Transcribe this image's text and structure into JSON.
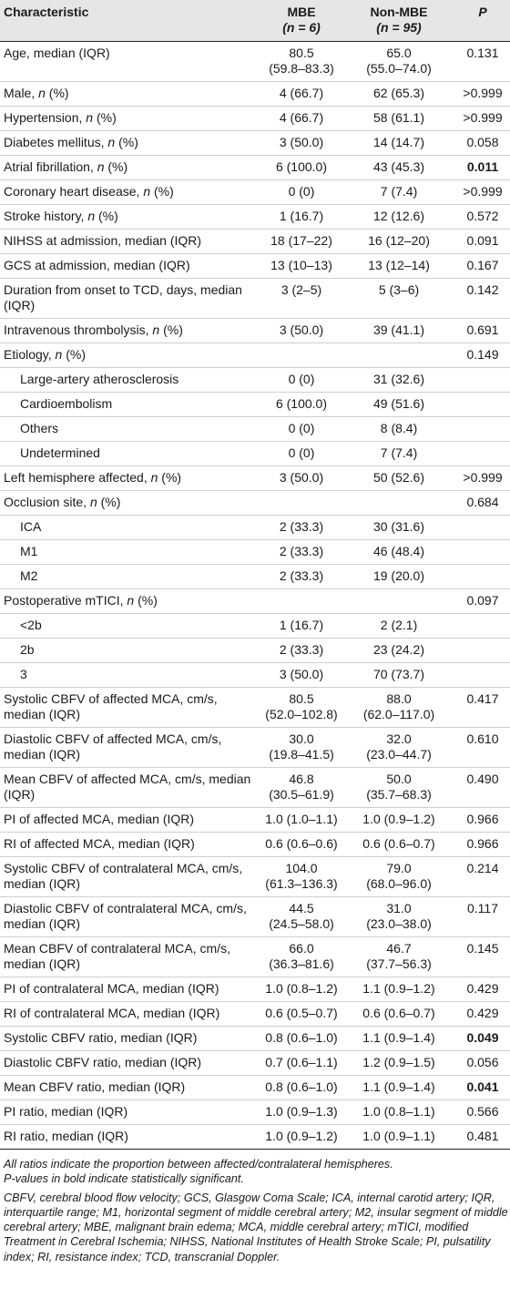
{
  "header": {
    "col1": "Characteristic",
    "col2_line1": "MBE",
    "col2_line2": "(n = 6)",
    "col3_line1": "Non-MBE",
    "col3_line2": "(n = 95)",
    "col4": "P"
  },
  "rows": [
    {
      "label": "Age, median (IQR)",
      "mbe": [
        "80.5",
        "(59.8–83.3)"
      ],
      "non": [
        "65.0",
        "(55.0–74.0)"
      ],
      "p": "0.131"
    },
    {
      "label": "Male, n (%)",
      "mbe": [
        "4 (66.7)"
      ],
      "non": [
        "62 (65.3)"
      ],
      "p": ">0.999"
    },
    {
      "label": "Hypertension, n (%)",
      "mbe": [
        "4 (66.7)"
      ],
      "non": [
        "58 (61.1)"
      ],
      "p": ">0.999"
    },
    {
      "label": "Diabetes mellitus, n (%)",
      "mbe": [
        "3 (50.0)"
      ],
      "non": [
        "14 (14.7)"
      ],
      "p": "0.058"
    },
    {
      "label": "Atrial fibrillation, n (%)",
      "mbe": [
        "6 (100.0)"
      ],
      "non": [
        "43 (45.3)"
      ],
      "p": "0.011",
      "p_bold": true
    },
    {
      "label": "Coronary heart disease, n (%)",
      "mbe": [
        "0 (0)"
      ],
      "non": [
        "7 (7.4)"
      ],
      "p": ">0.999"
    },
    {
      "label": "Stroke history, n (%)",
      "mbe": [
        "1 (16.7)"
      ],
      "non": [
        "12 (12.6)"
      ],
      "p": "0.572"
    },
    {
      "label": "NIHSS at admission, median (IQR)",
      "mbe": [
        "18 (17–22)"
      ],
      "non": [
        "16 (12–20)"
      ],
      "p": "0.091"
    },
    {
      "label": "GCS at admission, median (IQR)",
      "mbe": [
        "13 (10–13)"
      ],
      "non": [
        "13 (12–14)"
      ],
      "p": "0.167"
    },
    {
      "label": "Duration from onset to TCD, days, median (IQR)",
      "mbe": [
        "3 (2–5)"
      ],
      "non": [
        "5 (3–6)"
      ],
      "p": "0.142"
    },
    {
      "label": "Intravenous thrombolysis, n (%)",
      "mbe": [
        "3 (50.0)"
      ],
      "non": [
        "39 (41.1)"
      ],
      "p": "0.691"
    },
    {
      "label": "Etiology, n (%)",
      "mbe": [
        ""
      ],
      "non": [
        ""
      ],
      "p": "0.149"
    },
    {
      "label": "Large-artery atherosclerosis",
      "sub": true,
      "mbe": [
        "0 (0)"
      ],
      "non": [
        "31 (32.6)"
      ],
      "p": ""
    },
    {
      "label": "Cardioembolism",
      "sub": true,
      "mbe": [
        "6 (100.0)"
      ],
      "non": [
        "49 (51.6)"
      ],
      "p": ""
    },
    {
      "label": "Others",
      "sub": true,
      "mbe": [
        "0 (0)"
      ],
      "non": [
        "8 (8.4)"
      ],
      "p": ""
    },
    {
      "label": "Undetermined",
      "sub": true,
      "mbe": [
        "0 (0)"
      ],
      "non": [
        "7 (7.4)"
      ],
      "p": ""
    },
    {
      "label": "Left hemisphere affected, n (%)",
      "mbe": [
        "3 (50.0)"
      ],
      "non": [
        "50 (52.6)"
      ],
      "p": ">0.999"
    },
    {
      "label": "Occlusion site, n (%)",
      "mbe": [
        ""
      ],
      "non": [
        ""
      ],
      "p": "0.684"
    },
    {
      "label": "ICA",
      "sub": true,
      "mbe": [
        "2 (33.3)"
      ],
      "non": [
        "30 (31.6)"
      ],
      "p": ""
    },
    {
      "label": "M1",
      "sub": true,
      "mbe": [
        "2 (33.3)"
      ],
      "non": [
        "46 (48.4)"
      ],
      "p": ""
    },
    {
      "label": "M2",
      "sub": true,
      "mbe": [
        "2 (33.3)"
      ],
      "non": [
        "19 (20.0)"
      ],
      "p": ""
    },
    {
      "label": "Postoperative mTICI, n (%)",
      "mbe": [
        ""
      ],
      "non": [
        ""
      ],
      "p": "0.097"
    },
    {
      "label": "<2b",
      "sub": true,
      "mbe": [
        "1 (16.7)"
      ],
      "non": [
        "2 (2.1)"
      ],
      "p": ""
    },
    {
      "label": "2b",
      "sub": true,
      "mbe": [
        "2 (33.3)"
      ],
      "non": [
        "23 (24.2)"
      ],
      "p": ""
    },
    {
      "label": "3",
      "sub": true,
      "mbe": [
        "3 (50.0)"
      ],
      "non": [
        "70 (73.7)"
      ],
      "p": ""
    },
    {
      "label": "Systolic CBFV of affected MCA, cm/s, median (IQR)",
      "mbe": [
        "80.5",
        "(52.0–102.8)"
      ],
      "non": [
        "88.0",
        "(62.0–117.0)"
      ],
      "p": "0.417"
    },
    {
      "label": "Diastolic CBFV of affected MCA, cm/s, median (IQR)",
      "mbe": [
        "30.0",
        "(19.8–41.5)"
      ],
      "non": [
        "32.0",
        "(23.0–44.7)"
      ],
      "p": "0.610"
    },
    {
      "label": "Mean CBFV of affected MCA, cm/s, median (IQR)",
      "mbe": [
        "46.8",
        "(30.5–61.9)"
      ],
      "non": [
        "50.0",
        "(35.7–68.3)"
      ],
      "p": "0.490"
    },
    {
      "label": "PI of affected MCA, median (IQR)",
      "mbe": [
        "1.0 (1.0–1.1)"
      ],
      "non": [
        "1.0 (0.9–1.2)"
      ],
      "p": "0.966"
    },
    {
      "label": "RI of affected MCA, median (IQR)",
      "mbe": [
        "0.6 (0.6–0.6)"
      ],
      "non": [
        "0.6 (0.6–0.7)"
      ],
      "p": "0.966"
    },
    {
      "label": "Systolic CBFV of contralateral MCA, cm/s, median (IQR)",
      "mbe": [
        "104.0",
        "(61.3–136.3)"
      ],
      "non": [
        "79.0",
        "(68.0–96.0)"
      ],
      "p": "0.214"
    },
    {
      "label": "Diastolic CBFV of contralateral MCA, cm/s, median (IQR)",
      "mbe": [
        "44.5",
        "(24.5–58.0)"
      ],
      "non": [
        "31.0",
        "(23.0–38.0)"
      ],
      "p": "0.117"
    },
    {
      "label": "Mean CBFV of contralateral MCA, cm/s, median (IQR)",
      "mbe": [
        "66.0",
        "(36.3–81.6)"
      ],
      "non": [
        "46.7",
        "(37.7–56.3)"
      ],
      "p": "0.145"
    },
    {
      "label": "PI of contralateral MCA, median (IQR)",
      "mbe": [
        "1.0 (0.8–1.2)"
      ],
      "non": [
        "1.1 (0.9–1.2)"
      ],
      "p": "0.429"
    },
    {
      "label": "RI of contralateral MCA, median (IQR)",
      "mbe": [
        "0.6 (0.5–0.7)"
      ],
      "non": [
        "0.6 (0.6–0.7)"
      ],
      "p": "0.429"
    },
    {
      "label": "Systolic CBFV ratio, median (IQR)",
      "mbe": [
        "0.8 (0.6–1.0)"
      ],
      "non": [
        "1.1 (0.9–1.4)"
      ],
      "p": "0.049",
      "p_bold": true
    },
    {
      "label": "Diastolic CBFV ratio, median (IQR)",
      "mbe": [
        "0.7 (0.6–1.1)"
      ],
      "non": [
        "1.2 (0.9–1.5)"
      ],
      "p": "0.056"
    },
    {
      "label": "Mean CBFV ratio, median (IQR)",
      "mbe": [
        "0.8 (0.6–1.0)"
      ],
      "non": [
        "1.1 (0.9–1.4)"
      ],
      "p": "0.041",
      "p_bold": true
    },
    {
      "label": "PI ratio, median (IQR)",
      "mbe": [
        "1.0 (0.9–1.3)"
      ],
      "non": [
        "1.0 (0.8–1.1)"
      ],
      "p": "0.566"
    },
    {
      "label": "RI ratio, median (IQR)",
      "mbe": [
        "1.0 (0.9–1.2)"
      ],
      "non": [
        "1.0 (0.9–1.1)"
      ],
      "p": "0.481"
    }
  ],
  "notes": {
    "line1": "All ratios indicate the proportion between affected/contralateral hemispheres.",
    "line2": "P-values in bold indicate statistically significant.",
    "abbreviations": "CBFV, cerebral blood flow velocity; GCS, Glasgow Coma Scale; ICA, internal carotid artery; IQR, interquartile range; M1, horizontal segment of middle cerebral artery; M2, insular segment of middle cerebral artery; MBE, malignant brain edema; MCA, middle cerebral artery; mTICI, modified Treatment in Cerebral Ischemia; NIHSS, National Institutes of Health Stroke Scale; PI, pulsatility index; RI, resistance index; TCD, transcranial Doppler."
  }
}
